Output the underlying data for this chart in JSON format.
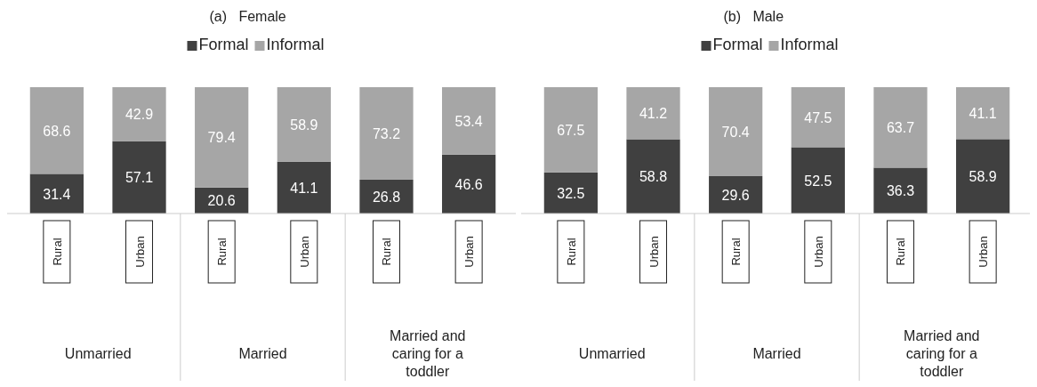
{
  "chart_data": [
    {
      "type": "bar",
      "title": "(a)   Female",
      "stacked": true,
      "data_labels": true,
      "legend": "top",
      "categories": [
        "Rural",
        "Urban",
        "Rural",
        "Urban",
        "Rural",
        "Urban"
      ],
      "annotations": [
        "Unmarried",
        "Married",
        "Married and caring for a toddler"
      ],
      "series": [
        {
          "name": "Formal",
          "color": "#404040",
          "values": [
            31.4,
            57.1,
            20.6,
            41.1,
            26.8,
            46.6
          ]
        },
        {
          "name": "Informal",
          "color": "#a6a6a6",
          "values": [
            68.6,
            42.9,
            79.4,
            58.9,
            73.2,
            53.4
          ]
        }
      ]
    },
    {
      "type": "bar",
      "title": "(b)   Male",
      "stacked": true,
      "data_labels": true,
      "legend": "top",
      "categories": [
        "Rural",
        "Urban",
        "Rural",
        "Urban",
        "Rural",
        "Urban"
      ],
      "annotations": [
        "Unmarried",
        "Married",
        "Married and caring for a toddler"
      ],
      "series": [
        {
          "name": "Formal",
          "color": "#404040",
          "values": [
            32.5,
            58.8,
            29.6,
            52.5,
            36.3,
            58.9
          ]
        },
        {
          "name": "Informal",
          "color": "#a6a6a6",
          "values": [
            67.5,
            41.2,
            70.4,
            47.5,
            63.7,
            41.1
          ]
        }
      ]
    }
  ]
}
